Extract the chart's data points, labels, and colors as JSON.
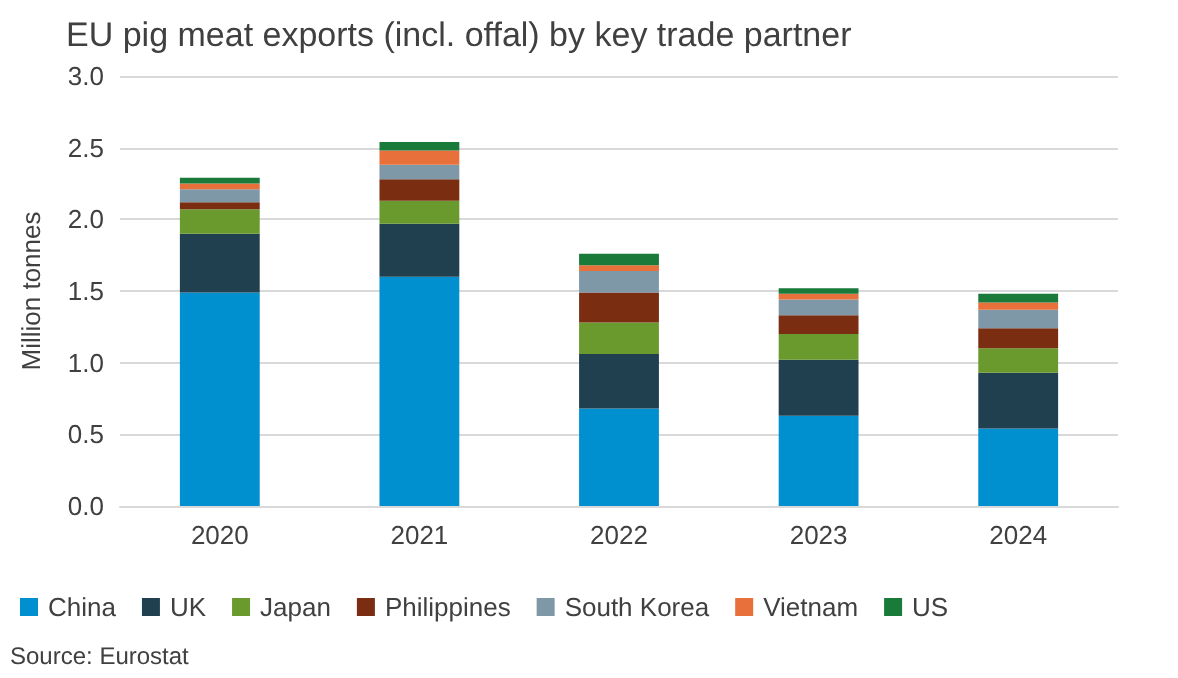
{
  "chart_data": {
    "type": "bar",
    "title": "EU pig meat exports (incl. offal) by key trade partner",
    "ylabel": "Million tonnes",
    "categories": [
      "2020",
      "2021",
      "2022",
      "2023",
      "2024"
    ],
    "stacked": true,
    "series": [
      {
        "name": "China",
        "color": "#0090d0",
        "values": [
          1.49,
          1.6,
          0.68,
          0.63,
          0.54
        ]
      },
      {
        "name": "UK",
        "color": "#203f4f",
        "values": [
          0.41,
          0.37,
          0.38,
          0.39,
          0.39
        ]
      },
      {
        "name": "Japan",
        "color": "#6a9a2e",
        "values": [
          0.17,
          0.16,
          0.22,
          0.18,
          0.17
        ]
      },
      {
        "name": "Philippines",
        "color": "#7b2d12",
        "values": [
          0.05,
          0.15,
          0.21,
          0.13,
          0.14
        ]
      },
      {
        "name": "South Korea",
        "color": "#7f98a8",
        "values": [
          0.09,
          0.1,
          0.15,
          0.11,
          0.13
        ]
      },
      {
        "name": "Vietnam",
        "color": "#e8703a",
        "values": [
          0.04,
          0.1,
          0.04,
          0.04,
          0.05
        ]
      },
      {
        "name": "US",
        "color": "#1a7a3a",
        "values": [
          0.04,
          0.06,
          0.08,
          0.04,
          0.06
        ]
      }
    ],
    "ylim": [
      0,
      3
    ],
    "yticks": [
      {
        "value": 0,
        "label": "0.0"
      },
      {
        "value": 0.5,
        "label": "0.5"
      },
      {
        "value": 1,
        "label": "1.0"
      },
      {
        "value": 1.5,
        "label": "1.5"
      },
      {
        "value": 2,
        "label": "2.0"
      },
      {
        "value": 2.5,
        "label": "2.5"
      },
      {
        "value": 3,
        "label": "3.0"
      }
    ],
    "grid": "y",
    "legend": "bottom",
    "annotations": [
      "Source: Eurostat"
    ]
  }
}
